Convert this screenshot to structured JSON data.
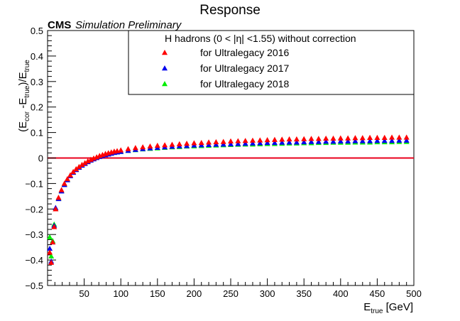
{
  "chart_data": {
    "type": "scatter",
    "title": "Response",
    "cms_label": "CMS",
    "cms_sublabel": "Simulation Preliminary",
    "xlabel": {
      "main": "E",
      "sub": "true",
      "unit": " [GeV]"
    },
    "ylabel": {
      "p1": "(E",
      "s1": "cor",
      "p2": " -E",
      "s2": "true",
      "p3": ")/E",
      "s3": "true"
    },
    "xlim": [
      0,
      500
    ],
    "ylim": [
      -0.5,
      0.5
    ],
    "xticks": [
      50,
      100,
      150,
      200,
      250,
      300,
      350,
      400,
      450,
      500
    ],
    "yticks": [
      -0.5,
      -0.4,
      -0.3,
      -0.2,
      -0.1,
      0,
      0.1,
      0.2,
      0.3,
      0.4,
      0.5
    ],
    "ytick_labels": [
      "−0.5",
      "−0.4",
      "−0.3",
      "−0.2",
      "−0.1",
      "0",
      "0.1",
      "0.2",
      "0.3",
      "0.4",
      "0.5"
    ],
    "grid": false,
    "legend": {
      "header": "H hadrons (0 < |η| <1.55) without correction",
      "position": "top-right"
    },
    "reference_line": {
      "y": 0,
      "color": "#e8001c"
    },
    "marker": "triangle",
    "series": [
      {
        "name": "for Ultralegacy 2016",
        "color": "#ff0000",
        "x": [
          3,
          5,
          7,
          9,
          11,
          15,
          19,
          23,
          27,
          31,
          35,
          39,
          43,
          47,
          51,
          55,
          59,
          63,
          67,
          71,
          75,
          79,
          83,
          87,
          91,
          95,
          100,
          110,
          120,
          130,
          140,
          150,
          160,
          170,
          180,
          190,
          200,
          210,
          220,
          230,
          240,
          250,
          260,
          270,
          280,
          290,
          300,
          310,
          320,
          330,
          340,
          350,
          360,
          370,
          380,
          390,
          400,
          410,
          420,
          430,
          440,
          450,
          460,
          470,
          480,
          490
        ],
        "y": [
          -0.37,
          -0.41,
          -0.33,
          -0.27,
          -0.2,
          -0.155,
          -0.125,
          -0.1,
          -0.082,
          -0.067,
          -0.054,
          -0.043,
          -0.034,
          -0.026,
          -0.019,
          -0.012,
          -0.006,
          -0.001,
          0.004,
          0.009,
          0.013,
          0.017,
          0.02,
          0.023,
          0.026,
          0.028,
          0.031,
          0.036,
          0.04,
          0.043,
          0.046,
          0.049,
          0.051,
          0.053,
          0.055,
          0.057,
          0.059,
          0.06,
          0.062,
          0.063,
          0.064,
          0.066,
          0.067,
          0.068,
          0.069,
          0.07,
          0.071,
          0.072,
          0.073,
          0.074,
          0.074,
          0.075,
          0.076,
          0.076,
          0.077,
          0.077,
          0.078,
          0.078,
          0.079,
          0.079,
          0.08,
          0.08,
          0.08,
          0.081,
          0.081,
          0.081
        ]
      },
      {
        "name": "for Ultralegacy 2017",
        "color": "#0000ee",
        "x": [
          3,
          5,
          7,
          9,
          11,
          15,
          19,
          23,
          27,
          31,
          35,
          39,
          43,
          47,
          51,
          55,
          59,
          63,
          67,
          71,
          75,
          79,
          83,
          87,
          91,
          95,
          100,
          110,
          120,
          130,
          140,
          150,
          160,
          170,
          180,
          190,
          200,
          210,
          220,
          230,
          240,
          250,
          260,
          270,
          280,
          290,
          300,
          310,
          320,
          330,
          340,
          350,
          360,
          370,
          380,
          390,
          400,
          410,
          420,
          430,
          440,
          450,
          460,
          470,
          480,
          490
        ],
        "y": [
          -0.355,
          -0.405,
          -0.33,
          -0.265,
          -0.195,
          -0.16,
          -0.13,
          -0.105,
          -0.086,
          -0.07,
          -0.057,
          -0.046,
          -0.037,
          -0.029,
          -0.022,
          -0.015,
          -0.009,
          -0.004,
          0.001,
          0.005,
          0.009,
          0.012,
          0.015,
          0.018,
          0.021,
          0.023,
          0.025,
          0.029,
          0.033,
          0.036,
          0.039,
          0.041,
          0.043,
          0.045,
          0.047,
          0.048,
          0.05,
          0.051,
          0.052,
          0.053,
          0.054,
          0.055,
          0.056,
          0.057,
          0.058,
          0.059,
          0.06,
          0.06,
          0.061,
          0.062,
          0.062,
          0.063,
          0.064,
          0.064,
          0.065,
          0.065,
          0.066,
          0.066,
          0.067,
          0.067,
          0.067,
          0.068,
          0.068,
          0.068,
          0.069,
          0.069
        ]
      },
      {
        "name": "for Ultralegacy 2018",
        "color": "#00ee00",
        "x": [
          3,
          5,
          7,
          9,
          11,
          15,
          19,
          23,
          27,
          31,
          35,
          39,
          43,
          47,
          51,
          55,
          59,
          63,
          67,
          71,
          75,
          79,
          83,
          87,
          91,
          95,
          100,
          110,
          120,
          130,
          140,
          150,
          160,
          170,
          180,
          190,
          200,
          210,
          220,
          230,
          240,
          250,
          260,
          270,
          280,
          290,
          300,
          310,
          320,
          330,
          340,
          350,
          360,
          370,
          380,
          390,
          400,
          410,
          420,
          430,
          440,
          450,
          460,
          470,
          480,
          490
        ],
        "y": [
          -0.31,
          -0.385,
          -0.325,
          -0.26,
          -0.2,
          -0.158,
          -0.128,
          -0.103,
          -0.084,
          -0.068,
          -0.055,
          -0.044,
          -0.035,
          -0.027,
          -0.02,
          -0.014,
          -0.008,
          -0.003,
          0.002,
          0.006,
          0.01,
          0.013,
          0.016,
          0.019,
          0.021,
          0.023,
          0.025,
          0.029,
          0.032,
          0.035,
          0.037,
          0.039,
          0.041,
          0.043,
          0.044,
          0.046,
          0.047,
          0.048,
          0.049,
          0.05,
          0.051,
          0.052,
          0.053,
          0.054,
          0.054,
          0.055,
          0.056,
          0.056,
          0.057,
          0.058,
          0.058,
          0.059,
          0.059,
          0.06,
          0.06,
          0.061,
          0.061,
          0.061,
          0.062,
          0.062,
          0.062,
          0.063,
          0.063,
          0.063,
          0.064,
          0.064
        ]
      }
    ]
  }
}
